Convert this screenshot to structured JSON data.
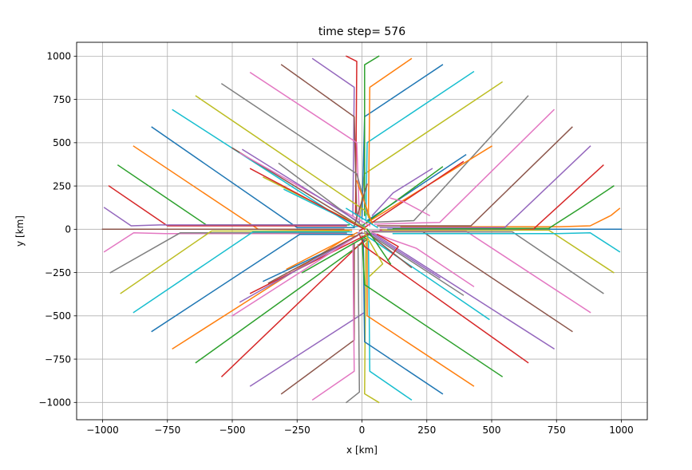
{
  "chart_data": {
    "type": "line",
    "title": "time step= 576",
    "xlabel": "x [km]",
    "ylabel": "y [km]",
    "xlim": [
      -1100,
      1100
    ],
    "ylim": [
      -1100,
      1080
    ],
    "xticks": [
      -1000,
      -750,
      -500,
      -250,
      0,
      250,
      500,
      750,
      1000
    ],
    "yticks": [
      -1000,
      -750,
      -500,
      -250,
      0,
      250,
      500,
      750,
      1000
    ],
    "xtick_labels": [
      "−1000",
      "−750",
      "−500",
      "−250",
      "0",
      "250",
      "500",
      "750",
      "1000"
    ],
    "ytick_labels": [
      "−1000",
      "−750",
      "−500",
      "−250",
      "0",
      "250",
      "500",
      "750",
      "1000"
    ],
    "grid": true,
    "legend": false,
    "color_cycle": [
      "#1f77b4",
      "#ff7f0e",
      "#2ca02c",
      "#d62728",
      "#9467bd",
      "#8c564b",
      "#e377c2",
      "#7f7f7f",
      "#bcbd22",
      "#17becf"
    ],
    "series": [
      {
        "color": "#1f77b4",
        "x": [
          1000,
          740,
          100
        ],
        "y": [
          0,
          0,
          0
        ]
      },
      {
        "color": "#ff7f0e",
        "x": [
          993,
          960,
          880,
          760,
          150
        ],
        "y": [
          120,
          80,
          20,
          15,
          15
        ]
      },
      {
        "color": "#2ca02c",
        "x": [
          970,
          850,
          720,
          120
        ],
        "y": [
          250,
          130,
          5,
          5
        ]
      },
      {
        "color": "#d62728",
        "x": [
          930,
          660,
          580,
          70
        ],
        "y": [
          370,
          0,
          -5,
          -5
        ]
      },
      {
        "color": "#9467bd",
        "x": [
          880,
          550,
          70
        ],
        "y": [
          480,
          10,
          10
        ]
      },
      {
        "color": "#8c564b",
        "x": [
          810,
          420,
          60
        ],
        "y": [
          590,
          20,
          20
        ]
      },
      {
        "color": "#e377c2",
        "x": [
          740,
          300,
          50
        ],
        "y": [
          690,
          40,
          30
        ]
      },
      {
        "color": "#7f7f7f",
        "x": [
          640,
          200,
          20
        ],
        "y": [
          770,
          50,
          40
        ]
      },
      {
        "color": "#bcbd22",
        "x": [
          540,
          10,
          -10
        ],
        "y": [
          850,
          320,
          40
        ]
      },
      {
        "color": "#17becf",
        "x": [
          430,
          20,
          15
        ],
        "y": [
          910,
          500,
          50
        ]
      },
      {
        "color": "#1f77b4",
        "x": [
          310,
          10,
          0
        ],
        "y": [
          950,
          650,
          60
        ]
      },
      {
        "color": "#ff7f0e",
        "x": [
          190,
          30,
          25
        ],
        "y": [
          985,
          820,
          70
        ]
      },
      {
        "color": "#2ca02c",
        "x": [
          65,
          10,
          10
        ],
        "y": [
          1000,
          950,
          80
        ]
      },
      {
        "color": "#d62728",
        "x": [
          -60,
          -20,
          -25
        ],
        "y": [
          1000,
          970,
          85
        ]
      },
      {
        "color": "#9467bd",
        "x": [
          -190,
          -30,
          -35
        ],
        "y": [
          985,
          820,
          80
        ]
      },
      {
        "color": "#8c564b",
        "x": [
          -310,
          -30,
          -20
        ],
        "y": [
          950,
          650,
          70
        ]
      },
      {
        "color": "#e377c2",
        "x": [
          -430,
          -20,
          -10
        ],
        "y": [
          905,
          500,
          60
        ]
      },
      {
        "color": "#7f7f7f",
        "x": [
          -540,
          -20,
          30
        ],
        "y": [
          840,
          320,
          50
        ]
      },
      {
        "color": "#bcbd22",
        "x": [
          -640,
          10,
          40
        ],
        "y": [
          770,
          110,
          40
        ]
      },
      {
        "color": "#17becf",
        "x": [
          -730,
          -30,
          10
        ],
        "y": [
          690,
          15,
          20
        ]
      },
      {
        "color": "#1f77b4",
        "x": [
          -810,
          -250,
          -30
        ],
        "y": [
          590,
          10,
          10
        ]
      },
      {
        "color": "#ff7f0e",
        "x": [
          -880,
          -400,
          -40
        ],
        "y": [
          480,
          0,
          -5
        ]
      },
      {
        "color": "#2ca02c",
        "x": [
          -940,
          -600,
          -50
        ],
        "y": [
          370,
          25,
          25
        ]
      },
      {
        "color": "#d62728",
        "x": [
          -975,
          -750,
          -60
        ],
        "y": [
          250,
          20,
          20
        ]
      },
      {
        "color": "#9467bd",
        "x": [
          -993,
          -890,
          -780,
          -60
        ],
        "y": [
          125,
          20,
          25,
          25
        ]
      },
      {
        "color": "#8c564b",
        "x": [
          -1000,
          -780,
          -70
        ],
        "y": [
          0,
          0,
          0
        ]
      },
      {
        "color": "#e377c2",
        "x": [
          -993,
          -880,
          -760,
          -60
        ],
        "y": [
          -130,
          -20,
          -25,
          -25
        ]
      },
      {
        "color": "#7f7f7f",
        "x": [
          -970,
          -700,
          -60
        ],
        "y": [
          -250,
          -20,
          -20
        ]
      },
      {
        "color": "#bcbd22",
        "x": [
          -930,
          -580,
          -50
        ],
        "y": [
          -370,
          -10,
          -10
        ]
      },
      {
        "color": "#17becf",
        "x": [
          -880,
          -420,
          -40
        ],
        "y": [
          -480,
          -15,
          -15
        ]
      },
      {
        "color": "#1f77b4",
        "x": [
          -810,
          -240,
          -30
        ],
        "y": [
          -590,
          -30,
          -30
        ]
      },
      {
        "color": "#ff7f0e",
        "x": [
          -730,
          -50,
          -20
        ],
        "y": [
          -690,
          -40,
          -40
        ]
      },
      {
        "color": "#2ca02c",
        "x": [
          -640,
          20,
          10
        ],
        "y": [
          -770,
          -60,
          -50
        ]
      },
      {
        "color": "#d62728",
        "x": [
          -540,
          10,
          0
        ],
        "y": [
          -850,
          -60,
          -60
        ]
      },
      {
        "color": "#9467bd",
        "x": [
          -430,
          10,
          5
        ],
        "y": [
          -905,
          -480,
          -70
        ]
      },
      {
        "color": "#8c564b",
        "x": [
          -310,
          -30,
          -30
        ],
        "y": [
          -950,
          -640,
          -80
        ]
      },
      {
        "color": "#e377c2",
        "x": [
          -190,
          -30,
          -35
        ],
        "y": [
          -985,
          -820,
          -80
        ]
      },
      {
        "color": "#7f7f7f",
        "x": [
          -60,
          -10,
          -15
        ],
        "y": [
          -1000,
          -940,
          -90
        ]
      },
      {
        "color": "#bcbd22",
        "x": [
          65,
          10,
          15
        ],
        "y": [
          -1000,
          -950,
          -80
        ]
      },
      {
        "color": "#17becf",
        "x": [
          190,
          30,
          25
        ],
        "y": [
          -985,
          -820,
          -70
        ]
      },
      {
        "color": "#1f77b4",
        "x": [
          310,
          10,
          5
        ],
        "y": [
          -950,
          -650,
          -60
        ]
      },
      {
        "color": "#ff7f0e",
        "x": [
          430,
          20,
          20
        ],
        "y": [
          -905,
          -500,
          -50
        ]
      },
      {
        "color": "#2ca02c",
        "x": [
          540,
          10,
          0
        ],
        "y": [
          -850,
          -320,
          -40
        ]
      },
      {
        "color": "#d62728",
        "x": [
          640,
          10,
          -10
        ],
        "y": [
          -770,
          -100,
          -30
        ]
      },
      {
        "color": "#9467bd",
        "x": [
          740,
          50,
          -20
        ],
        "y": [
          -690,
          -30,
          -20
        ]
      },
      {
        "color": "#8c564b",
        "x": [
          810,
          230,
          20
        ],
        "y": [
          -590,
          -10,
          -10
        ]
      },
      {
        "color": "#e377c2",
        "x": [
          880,
          400,
          30
        ],
        "y": [
          -480,
          -10,
          -10
        ]
      },
      {
        "color": "#7f7f7f",
        "x": [
          930,
          580,
          40
        ],
        "y": [
          -370,
          -15,
          -15
        ]
      },
      {
        "color": "#bcbd22",
        "x": [
          970,
          720,
          80
        ],
        "y": [
          -250,
          -5,
          -5
        ]
      },
      {
        "color": "#17becf",
        "x": [
          993,
          880,
          750,
          120
        ],
        "y": [
          -130,
          -20,
          -25,
          -25
        ]
      },
      {
        "color": "#1f77b4",
        "x": [
          400,
          20
        ],
        "y": [
          430,
          50
        ]
      },
      {
        "color": "#ff7f0e",
        "x": [
          500,
          10
        ],
        "y": [
          480,
          30
        ]
      },
      {
        "color": "#2ca02c",
        "x": [
          310,
          0
        ],
        "y": [
          360,
          20
        ]
      },
      {
        "color": "#d62728",
        "x": [
          390,
          -10
        ],
        "y": [
          390,
          -10
        ]
      },
      {
        "color": "#9467bd",
        "x": [
          270,
          120,
          40
        ],
        "y": [
          350,
          210,
          80
        ]
      },
      {
        "color": "#8c564b",
        "x": [
          -500,
          -20
        ],
        "y": [
          470,
          30
        ]
      },
      {
        "color": "#e377c2",
        "x": [
          -470,
          30
        ],
        "y": [
          440,
          20
        ]
      },
      {
        "color": "#7f7f7f",
        "x": [
          -320,
          10
        ],
        "y": [
          380,
          10
        ]
      },
      {
        "color": "#bcbd22",
        "x": [
          -380,
          20
        ],
        "y": [
          300,
          0
        ]
      },
      {
        "color": "#17becf",
        "x": [
          -300,
          0
        ],
        "y": [
          230,
          10
        ]
      },
      {
        "color": "#9467bd",
        "x": [
          -460,
          -10
        ],
        "y": [
          460,
          40
        ]
      },
      {
        "color": "#d62728",
        "x": [
          -430,
          10
        ],
        "y": [
          350,
          0
        ]
      },
      {
        "color": "#1f77b4",
        "x": [
          -380,
          -40
        ],
        "y": [
          -300,
          -60
        ]
      },
      {
        "color": "#ff7f0e",
        "x": [
          -290,
          -20
        ],
        "y": [
          -230,
          -20
        ]
      },
      {
        "color": "#2ca02c",
        "x": [
          -230,
          40
        ],
        "y": [
          -250,
          -20
        ]
      },
      {
        "color": "#d62728",
        "x": [
          -430,
          20
        ],
        "y": [
          -370,
          -30
        ]
      },
      {
        "color": "#9467bd",
        "x": [
          -470,
          -20
        ],
        "y": [
          -420,
          -40
        ]
      },
      {
        "color": "#e377c2",
        "x": [
          -500,
          -10
        ],
        "y": [
          -500,
          -30
        ]
      },
      {
        "color": "#8c564b",
        "x": [
          -360,
          0
        ],
        "y": [
          -310,
          -20
        ]
      },
      {
        "color": "#9467bd",
        "x": [
          300,
          30
        ],
        "y": [
          -280,
          -20
        ]
      },
      {
        "color": "#7f7f7f",
        "x": [
          390,
          10
        ],
        "y": [
          -380,
          -10
        ]
      },
      {
        "color": "#17becf",
        "x": [
          490,
          20
        ],
        "y": [
          -520,
          -40
        ]
      },
      {
        "color": "#8c564b",
        "x": [
          190,
          20
        ],
        "y": [
          -220,
          -20
        ]
      },
      {
        "color": "#e377c2",
        "x": [
          430,
          350,
          210,
          40
        ],
        "y": [
          -330,
          -250,
          -110,
          -20
        ]
      },
      {
        "color": "#d62728",
        "x": [
          100,
          140,
          60
        ],
        "y": [
          -180,
          -100,
          -30
        ]
      },
      {
        "color": "#bcbd22",
        "x": [
          30,
          80,
          10
        ],
        "y": [
          -270,
          -200,
          -20
        ]
      },
      {
        "color": "#2ca02c",
        "x": [
          110,
          20
        ],
        "y": [
          -200,
          0
        ]
      },
      {
        "color": "#ff7f0e",
        "x": [
          -20,
          40
        ],
        "y": [
          280,
          30
        ]
      },
      {
        "color": "#8c564b",
        "x": [
          20,
          -30
        ],
        "y": [
          260,
          20
        ]
      },
      {
        "color": "#e377c2",
        "x": [
          260,
          160,
          110
        ],
        "y": [
          80,
          160,
          180
        ]
      },
      {
        "color": "#17becf",
        "x": [
          -60,
          60
        ],
        "y": [
          120,
          10
        ]
      }
    ]
  }
}
